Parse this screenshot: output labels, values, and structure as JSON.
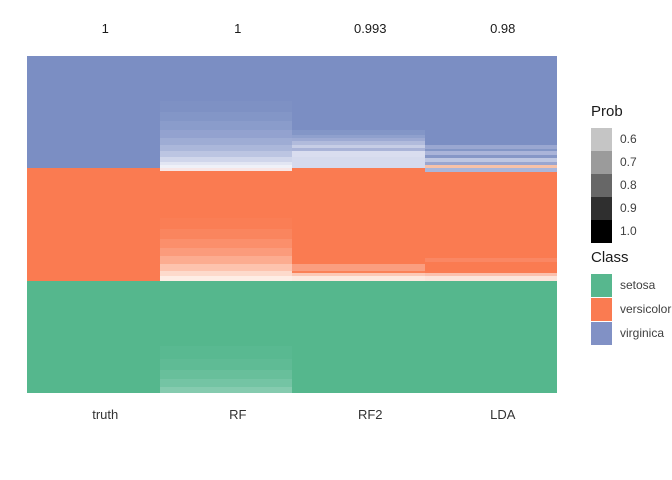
{
  "chart_data": {
    "type": "heatmap",
    "description": "Predicted class-probability heatmap for iris observations (rows) by model (columns); cell hue = predicted class, lightness = probability; top labels are per-model accuracy",
    "row_groups": [
      "virginica",
      "versicolor",
      "setosa"
    ],
    "accuracy": {
      "truth": 1,
      "RF": 1,
      "RF2": 0.993,
      "LDA": 0.98
    },
    "class_colors": {
      "setosa": "#57B78E",
      "versicolor": "#FA7B51",
      "virginica": "#7B8EC3"
    },
    "columns": [
      {
        "label": "truth",
        "top_label": "1",
        "bands": [
          {
            "class": "virginica",
            "stripes": [
              [
                1,
                "#7B8EC3"
              ]
            ]
          },
          {
            "class": "versicolor",
            "stripes": [
              [
                1,
                "#FA7B51"
              ]
            ]
          },
          {
            "class": "setosa",
            "stripes": [
              [
                1,
                "#55B78D"
              ]
            ]
          }
        ]
      },
      {
        "label": "RF",
        "top_label": "1",
        "bands": [
          {
            "class": "virginica",
            "stripes": [
              [
                0.4,
                "#7B8EC3"
              ],
              [
                0.1,
                "#7E91C4"
              ],
              [
                0.08,
                "#8396C7"
              ],
              [
                0.08,
                "#8A9CCB"
              ],
              [
                0.07,
                "#93A2CF"
              ],
              [
                0.06,
                "#9EACD4"
              ],
              [
                0.06,
                "#ABB7DA"
              ],
              [
                0.05,
                "#BCC5E2"
              ],
              [
                0.04,
                "#D0D6EB"
              ],
              [
                0.03,
                "#E2E6F3"
              ],
              [
                0.03,
                "#EFF1F8"
              ]
            ]
          },
          {
            "class": "versicolor",
            "stripes": [
              [
                0.02,
                "#F7E6E6"
              ],
              [
                0.42,
                "#FA7B51"
              ],
              [
                0.1,
                "#FA7E55"
              ],
              [
                0.09,
                "#FA855E"
              ],
              [
                0.08,
                "#FB8F6B"
              ],
              [
                0.07,
                "#FB9B7B"
              ],
              [
                0.07,
                "#FCAC90"
              ],
              [
                0.06,
                "#FDC3AE"
              ],
              [
                0.05,
                "#FDDACC"
              ],
              [
                0.04,
                "#FEEDE5"
              ]
            ]
          },
          {
            "class": "setosa",
            "stripes": [
              [
                0.58,
                "#55B78D"
              ],
              [
                0.12,
                "#59B991"
              ],
              [
                0.1,
                "#5FBB95"
              ],
              [
                0.08,
                "#68BF9B"
              ],
              [
                0.07,
                "#74C4A4"
              ],
              [
                0.05,
                "#85CBAF"
              ]
            ]
          }
        ]
      },
      {
        "label": "RF2",
        "top_label": "0.993",
        "bands": [
          {
            "class": "virginica",
            "stripes": [
              [
                0.66,
                "#7B8EC3"
              ],
              [
                0.04,
                "#8396C7"
              ],
              [
                0.03,
                "#8FA0CD"
              ],
              [
                0.03,
                "#9DAAD3"
              ],
              [
                0.03,
                "#B1BBDC"
              ],
              [
                0.03,
                "#C7CEE6"
              ],
              [
                0.03,
                "#AAB4D8"
              ],
              [
                0.05,
                "#D9DDEF"
              ],
              [
                0.1,
                "#D5DAED"
              ]
            ]
          },
          {
            "class": "versicolor",
            "stripes": [
              [
                0.855,
                "#FA7B51"
              ],
              [
                0.055,
                "#FA9E80"
              ],
              [
                0.025,
                "#FA8157"
              ],
              [
                0.025,
                "#FCC9B6"
              ],
              [
                0.04,
                "#FDE9DF"
              ]
            ]
          },
          {
            "class": "setosa",
            "stripes": [
              [
                1,
                "#55B78D"
              ]
            ]
          }
        ]
      },
      {
        "label": "LDA",
        "top_label": "0.98",
        "bands": [
          {
            "class": "virginica",
            "stripes": [
              [
                0.79,
                "#7B8EC3"
              ],
              [
                0.035,
                "#9AA7D1"
              ],
              [
                0.025,
                "#8396C6"
              ],
              [
                0.03,
                "#AAB4D9"
              ],
              [
                0.025,
                "#8697C7"
              ],
              [
                0.035,
                "#BFC7E2"
              ],
              [
                0.035,
                "#9AA6D0"
              ],
              [
                0.025,
                "#F8C2A8"
              ]
            ]
          },
          {
            "class": "versicolor",
            "stripes": [
              [
                0.035,
                "#AAB6DA"
              ],
              [
                0.765,
                "#FA7B51"
              ],
              [
                0.03,
                "#FA8763"
              ],
              [
                0.1,
                "#FA7B51"
              ],
              [
                0.03,
                "#FBC0AD"
              ],
              [
                0.04,
                "#FCE4DA"
              ]
            ]
          },
          {
            "class": "setosa",
            "stripes": [
              [
                1,
                "#55B78D"
              ]
            ]
          }
        ]
      }
    ],
    "legend_prob": {
      "title": "Prob",
      "bins": [
        {
          "label": "0.6",
          "color": "#C5C5C5"
        },
        {
          "label": "0.7",
          "color": "#9B9B9B"
        },
        {
          "label": "0.8",
          "color": "#676767"
        },
        {
          "label": "0.9",
          "color": "#2F2F2F"
        },
        {
          "label": "1.0",
          "color": "#000000"
        }
      ]
    },
    "legend_class": {
      "title": "Class",
      "items": [
        {
          "label": "setosa",
          "color": "#57B78E"
        },
        {
          "label": "versicolor",
          "color": "#FA7B51"
        },
        {
          "label": "virginica",
          "color": "#8191C5"
        }
      ]
    }
  }
}
